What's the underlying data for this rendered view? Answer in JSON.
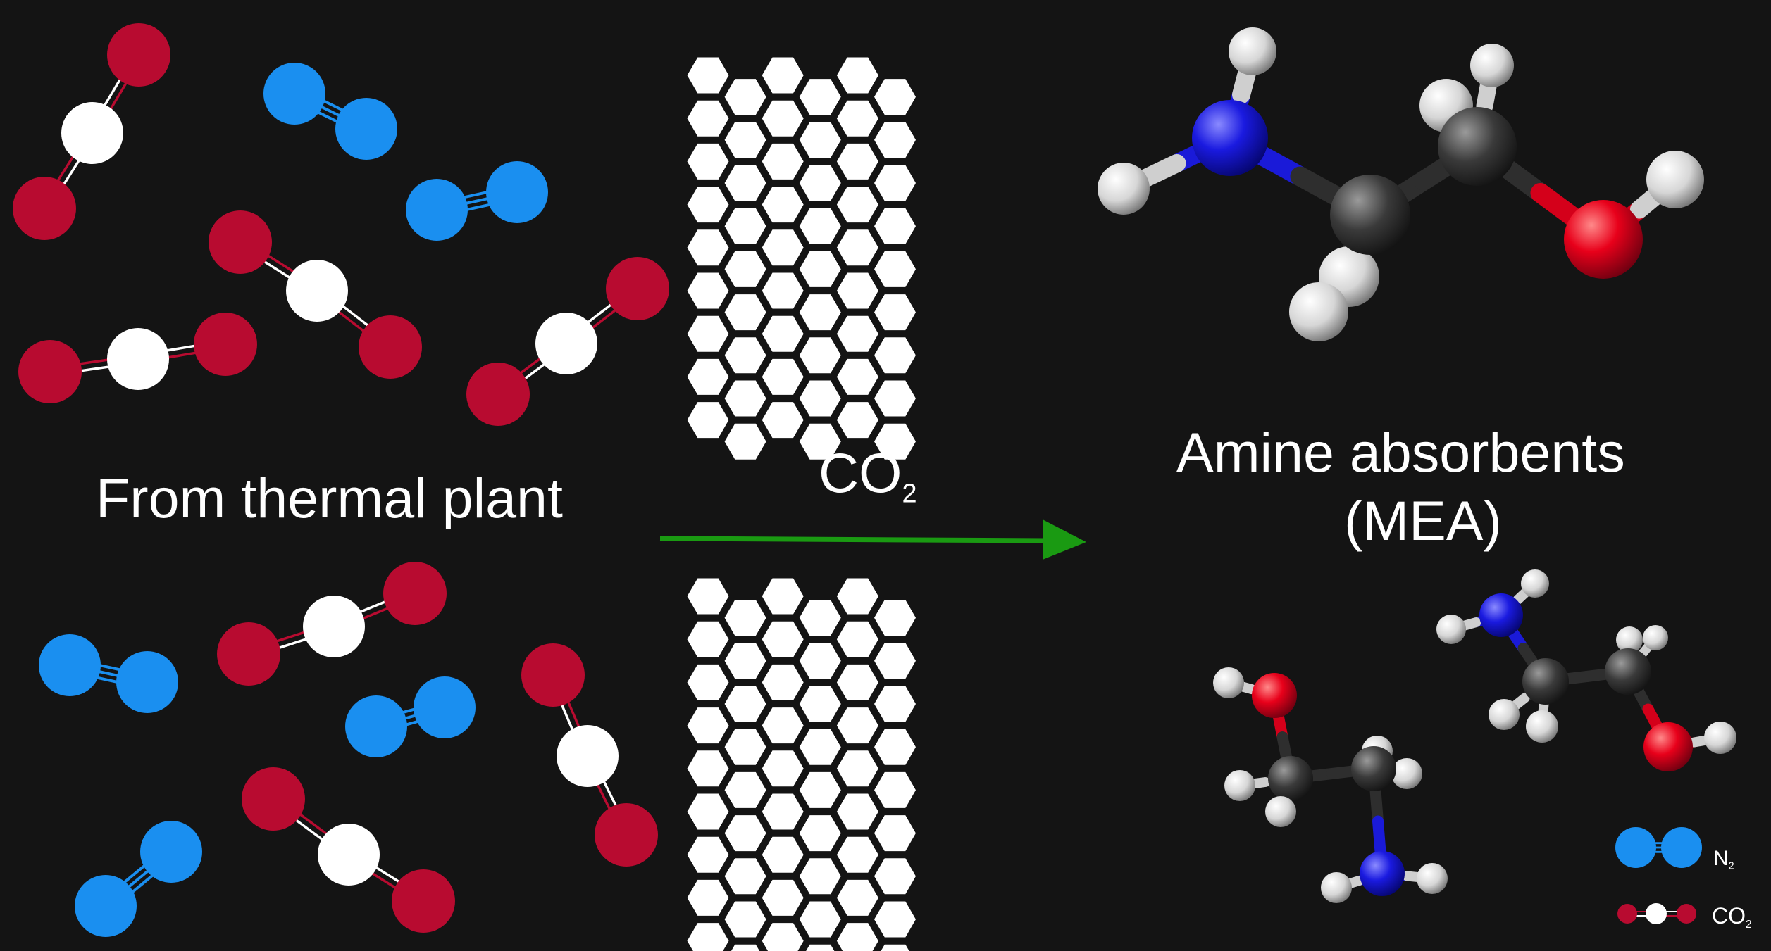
{
  "labels": {
    "source": "From thermal plant",
    "gas_main": "CO",
    "gas_sub": "2",
    "absorbent_line1": "Amine absorbents",
    "absorbent_line2": "(MEA)"
  },
  "legend": {
    "n2_main": "N",
    "n2_sub": "2",
    "co2_main": "CO",
    "co2_sub": "2"
  },
  "colors": {
    "background": "#141414",
    "oxygen_co2": "#b80b30",
    "nitrogen_n2": "#1a8ff0",
    "carbon_co2": "#ffffff",
    "arrow": "#1a9a12",
    "membrane": "#ffffff",
    "mea_hydrogen": "#e6e6e6",
    "mea_carbon": "#3c3c3c",
    "mea_nitrogen": "#1515d8",
    "mea_oxygen": "#e0001a"
  },
  "icons": {
    "co2_molecule": "co2-molecule-icon",
    "n2_molecule": "n2-molecule-icon",
    "membrane": "hexagonal-membrane-icon",
    "mea_molecule": "mea-ball-and-stick-icon"
  }
}
